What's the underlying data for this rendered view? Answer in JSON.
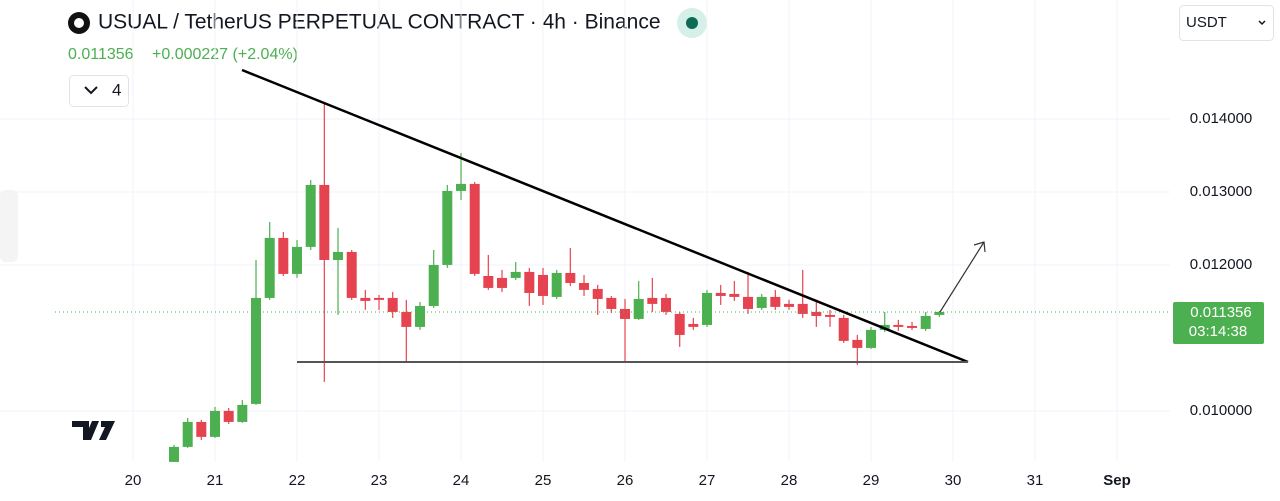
{
  "header": {
    "change": "+0.000227 (+2.04%)",
    "indicators": "4",
    "currency": "USDT"
  },
  "chart_data": {
    "type": "candlestick",
    "title": "USUAL / TetherUS PERPETUAL CONTRACT · 4h · Binance",
    "countdown": "03:14:38",
    "up_color": "#4caf50",
    "down_color": "#e5434f",
    "grid": true,
    "xlim": [
      18.378,
      32.646
    ],
    "ylim": [
      0.0093,
      0.01563
    ],
    "xticks": [
      20,
      21,
      22,
      23,
      24,
      25,
      26,
      27,
      28,
      29,
      30,
      31,
      {
        "value": 32,
        "label": "Sep"
      }
    ],
    "yticks": [
      {
        "value": 0.01,
        "label": "0.010000"
      },
      {
        "value": 0.012,
        "label": "0.012000"
      },
      {
        "value": 0.013,
        "label": "0.013000"
      },
      {
        "value": 0.014,
        "label": "0.014000"
      }
    ],
    "x": [
      20.5,
      20.667,
      20.833,
      21,
      21.167,
      21.333,
      21.5,
      21.667,
      21.833,
      22,
      22.167,
      22.333,
      22.5,
      22.667,
      22.833,
      23,
      23.167,
      23.333,
      23.5,
      23.667,
      23.833,
      24,
      24.167,
      24.333,
      24.5,
      24.667,
      24.833,
      25,
      25.167,
      25.333,
      25.5,
      25.667,
      25.833,
      26,
      26.167,
      26.333,
      26.5,
      26.667,
      26.833,
      27,
      27.167,
      27.333,
      27.5,
      27.667,
      27.833,
      28,
      28.167,
      28.333,
      28.5,
      28.667,
      28.833,
      29,
      29.167,
      29.333,
      29.5,
      29.667,
      29.833
    ],
    "open": [
      0.009301,
      0.009507,
      0.009849,
      0.009644,
      0.01,
      0.009849,
      0.010096,
      0.011548,
      0.01237,
      0.011877,
      0.012247,
      0.013096,
      0.012068,
      0.012178,
      0.011548,
      0.011548,
      0.011548,
      0.011356,
      0.011151,
      0.011438,
      0.012,
      0.013014,
      0.01311,
      0.011849,
      0.011822,
      0.011822,
      0.011904,
      0.011863,
      0.011562,
      0.01189,
      0.011753,
      0.011671,
      0.011548,
      0.011397,
      0.01126,
      0.011548,
      0.011548,
      0.011329,
      0.011192,
      0.011178,
      0.011616,
      0.011603,
      0.011562,
      0.011411,
      0.011562,
      0.011466,
      0.011466,
      0.011356,
      0.011315,
      0.011274,
      0.010973,
      0.010863,
      0.01111,
      0.011178,
      0.011164,
      0.011123,
      0.011315
    ],
    "high": [
      0.009534,
      0.009904,
      0.009877,
      0.010055,
      0.010041,
      0.010151,
      0.012068,
      0.012589,
      0.012452,
      0.012342,
      0.013164,
      0.014233,
      0.012507,
      0.012205,
      0.011658,
      0.011589,
      0.01163,
      0.011521,
      0.011493,
      0.012205,
      0.013096,
      0.013534,
      0.013137,
      0.012137,
      0.011932,
      0.012041,
      0.011959,
      0.011959,
      0.011932,
      0.012233,
      0.011863,
      0.011726,
      0.011575,
      0.011534,
      0.011781,
      0.011822,
      0.011603,
      0.011356,
      0.011274,
      0.011658,
      0.011726,
      0.011781,
      0.011904,
      0.011603,
      0.011658,
      0.011521,
      0.011932,
      0.011521,
      0.011384,
      0.011315,
      0.011041,
      0.011151,
      0.011356,
      0.011247,
      0.011219,
      0.011356,
      0.01137
    ],
    "low": [
      0.009301,
      0.009493,
      0.009603,
      0.00963,
      0.009822,
      0.009836,
      0.010082,
      0.011521,
      0.011849,
      0.011822,
      0.012205,
      0.010397,
      0.011315,
      0.011521,
      0.011384,
      0.011384,
      0.011274,
      0.010671,
      0.01111,
      0.011411,
      0.011959,
      0.01289,
      0.011849,
      0.011658,
      0.01163,
      0.011795,
      0.011438,
      0.011452,
      0.011534,
      0.011712,
      0.011575,
      0.011315,
      0.011342,
      0.010671,
      0.011247,
      0.011356,
      0.011315,
      0.010877,
      0.01111,
      0.011151,
      0.011452,
      0.011507,
      0.011329,
      0.011384,
      0.011384,
      0.011384,
      0.011274,
      0.011151,
      0.011151,
      0.010932,
      0.01063,
      0.010849,
      0.011082,
      0.011096,
      0.01111,
      0.011096,
      0.011288
    ],
    "close": [
      0.009507,
      0.009849,
      0.009644,
      0.01,
      0.009849,
      0.010082,
      0.011548,
      0.01237,
      0.011877,
      0.012247,
      0.013096,
      0.012068,
      0.012178,
      0.011548,
      0.011507,
      0.011521,
      0.011356,
      0.011151,
      0.011438,
      0.012,
      0.013014,
      0.01311,
      0.011877,
      0.011685,
      0.011685,
      0.011904,
      0.011616,
      0.011575,
      0.01189,
      0.011753,
      0.011658,
      0.011534,
      0.011397,
      0.01126,
      0.011534,
      0.011466,
      0.011356,
      0.011041,
      0.011151,
      0.011616,
      0.011575,
      0.011562,
      0.011397,
      0.011562,
      0.011425,
      0.011425,
      0.011329,
      0.011301,
      0.011288,
      0.010959,
      0.010863,
      0.01111,
      0.011178,
      0.011151,
      0.011137,
      0.011301,
      0.011356
    ]
  }
}
